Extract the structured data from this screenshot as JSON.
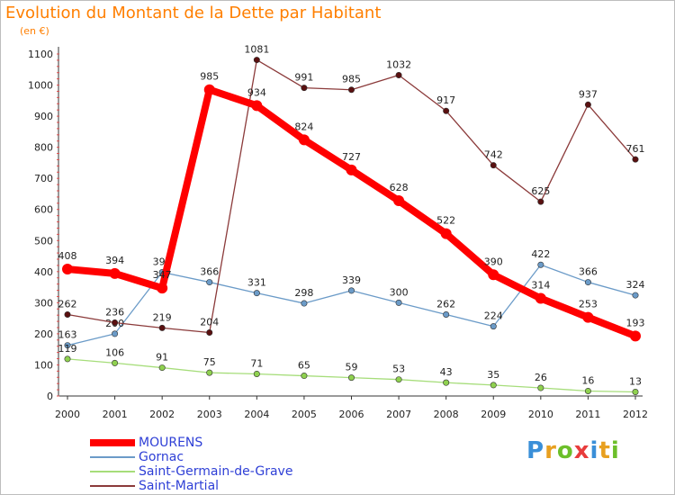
{
  "header": {
    "title": "Evolution du Montant de la Dette par Habitant",
    "subtitle": "(en €)"
  },
  "logo": {
    "letters": [
      {
        "ch": "P",
        "color": "#3a8fd8"
      },
      {
        "ch": "r",
        "color": "#e8a020"
      },
      {
        "ch": "o",
        "color": "#6cbf2a"
      },
      {
        "ch": "x",
        "color": "#e83c3c"
      },
      {
        "ch": "i",
        "color": "#3a8fd8"
      },
      {
        "ch": "t",
        "color": "#e8a020"
      },
      {
        "ch": "i",
        "color": "#6cbf2a"
      }
    ]
  },
  "chart_data": {
    "type": "line",
    "title": "Evolution du Montant de la Dette par Habitant",
    "ylabel": "(en €)",
    "xlabel": "",
    "x": [
      "2000",
      "2001",
      "2002",
      "2003",
      "2004",
      "2005",
      "2006",
      "2007",
      "2008",
      "2009",
      "2010",
      "2011",
      "2012"
    ],
    "ylim": [
      0,
      1100
    ],
    "yticks": [
      0,
      100,
      200,
      300,
      400,
      500,
      600,
      700,
      800,
      900,
      1000,
      1100
    ],
    "grid": false,
    "legend_position": "bottom-left",
    "series": [
      {
        "name": "MOURENS",
        "color": "#ff0000",
        "point_color": "#ff0000",
        "emphasis": true,
        "values": [
          408,
          394,
          347,
          985,
          934,
          824,
          727,
          628,
          522,
          390,
          314,
          253,
          193
        ],
        "labels": [
          "408",
          "394",
          "347",
          "985",
          "934",
          "824",
          "727",
          "628",
          "522",
          "390",
          "314",
          "253",
          "193"
        ]
      },
      {
        "name": "Gornac",
        "color": "#6b9bc8",
        "point_color": "#6b9bc8",
        "emphasis": false,
        "values": [
          163,
          200,
          398,
          366,
          331,
          298,
          339,
          300,
          262,
          224,
          422,
          366,
          324
        ],
        "labels": [
          "163",
          "200",
          "398",
          "366",
          "331",
          "298",
          "339",
          "300",
          "262",
          "224",
          "422",
          "366",
          "324"
        ]
      },
      {
        "name": "Saint-Germain-de-Grave",
        "color": "#a6dd7a",
        "point_color": "#8fd14f",
        "emphasis": false,
        "values": [
          119,
          106,
          91,
          75,
          71,
          65,
          59,
          53,
          43,
          35,
          26,
          16,
          13
        ],
        "labels": [
          "119",
          "106",
          "91",
          "75",
          "71",
          "65",
          "59",
          "53",
          "43",
          "35",
          "26",
          "16",
          "13"
        ]
      },
      {
        "name": "Saint-Martial",
        "color": "#8b3a3a",
        "point_color": "#5a1010",
        "emphasis": false,
        "values": [
          262,
          236,
          219,
          204,
          1081,
          991,
          985,
          1032,
          917,
          742,
          625,
          937,
          761
        ],
        "labels": [
          "262",
          "236",
          "219",
          "204",
          "1081",
          "991",
          "985",
          "1032",
          "917",
          "742",
          "625",
          "937",
          "761"
        ]
      }
    ]
  }
}
